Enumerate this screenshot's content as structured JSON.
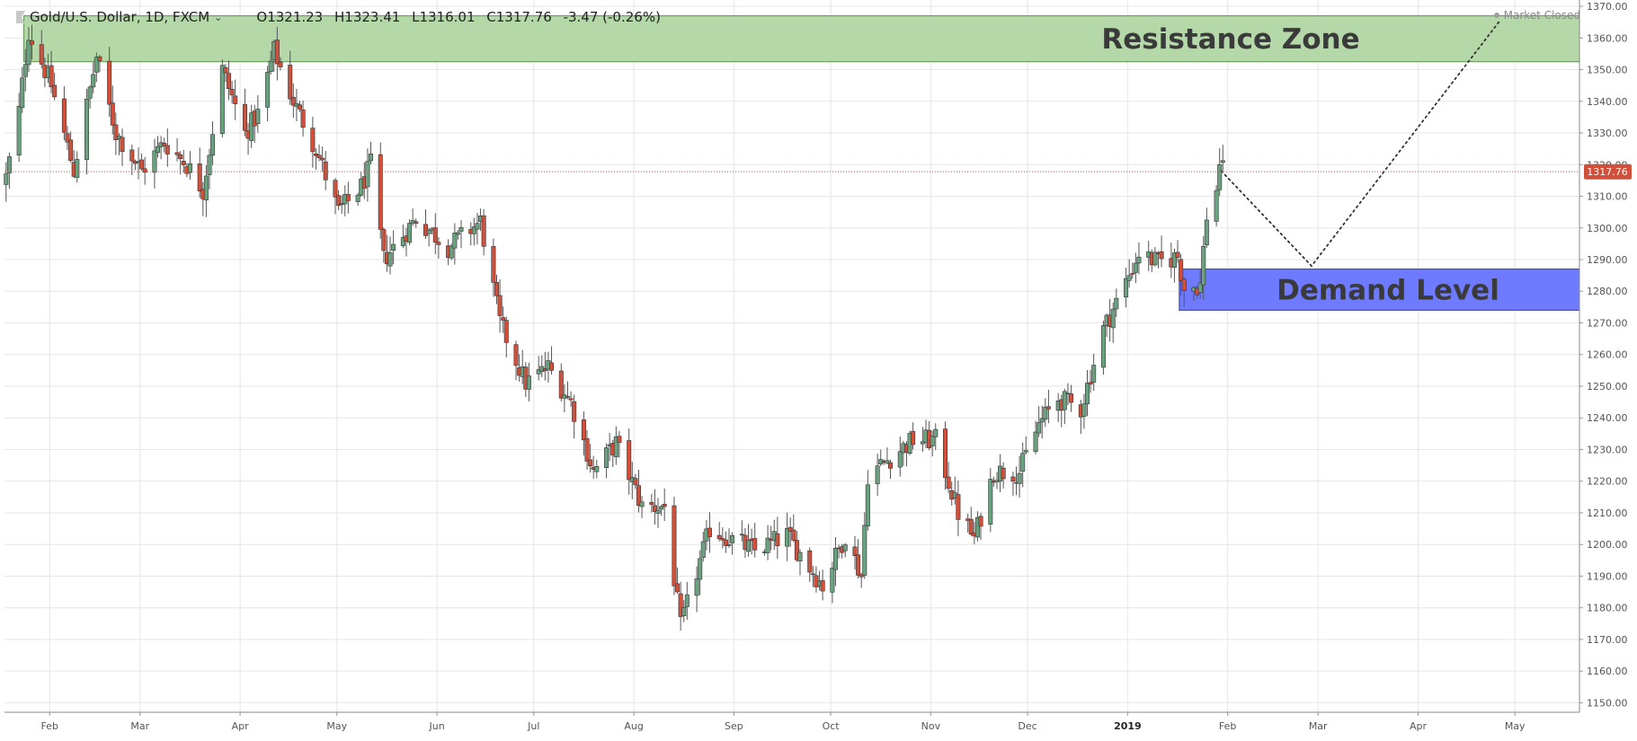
{
  "header": {
    "symbol": "Gold/U.S. Dollar, 1D, FXCM",
    "open": "O1321.23",
    "high": "H1323.41",
    "low": "L1316.01",
    "close": "C1317.76",
    "change": "-3.47 (-0.26%)"
  },
  "market_status": "Market Closed",
  "last_price_label": "1317.76",
  "annotations": {
    "resistance_label": "Resistance Zone",
    "demand_label": "Demand Level"
  },
  "colors": {
    "up_candle": "#6aa27f",
    "down_candle": "#d0503c",
    "resistance_fill": "#b5d8a8",
    "demand_fill": "#6f7bff",
    "last_price": "#d0503c"
  },
  "chart_data": {
    "type": "candlestick",
    "y_axis": {
      "ylim": [
        1147,
        1372
      ],
      "ticks": [
        "1150.00",
        "1160.00",
        "1170.00",
        "1180.00",
        "1190.00",
        "1200.00",
        "1210.00",
        "1220.00",
        "1230.00",
        "1240.00",
        "1250.00",
        "1260.00",
        "1270.00",
        "1280.00",
        "1290.00",
        "1300.00",
        "1310.00",
        "1320.00",
        "1330.00",
        "1340.00",
        "1350.00",
        "1360.00",
        "1370.00"
      ]
    },
    "x_axis": {
      "xlim": [
        "2018-01-18",
        "2019-05-21"
      ],
      "ticks": [
        {
          "date": "2018-02-01",
          "label": "Feb",
          "bold": false
        },
        {
          "date": "2018-03-01",
          "label": "Mar",
          "bold": false
        },
        {
          "date": "2018-04-01",
          "label": "Apr",
          "bold": false
        },
        {
          "date": "2018-05-01",
          "label": "May",
          "bold": false
        },
        {
          "date": "2018-06-01",
          "label": "Jun",
          "bold": false
        },
        {
          "date": "2018-07-01",
          "label": "Jul",
          "bold": false
        },
        {
          "date": "2018-08-01",
          "label": "Aug",
          "bold": false
        },
        {
          "date": "2018-09-01",
          "label": "Sep",
          "bold": false
        },
        {
          "date": "2018-10-01",
          "label": "Oct",
          "bold": false
        },
        {
          "date": "2018-11-01",
          "label": "Nov",
          "bold": false
        },
        {
          "date": "2018-12-01",
          "label": "Dec",
          "bold": false
        },
        {
          "date": "2019-01-01",
          "label": "2019",
          "bold": true
        },
        {
          "date": "2019-02-01",
          "label": "Feb",
          "bold": false
        },
        {
          "date": "2019-03-01",
          "label": "Mar",
          "bold": false
        },
        {
          "date": "2019-04-01",
          "label": "Apr",
          "bold": false
        },
        {
          "date": "2019-05-01",
          "label": "May",
          "bold": false
        }
      ]
    },
    "grid": true,
    "last_price": 1317.76,
    "zones": [
      {
        "name": "Resistance Zone",
        "from": "2018-01-24",
        "to": "2019-05-21",
        "low": 1352.5,
        "high": 1367
      },
      {
        "name": "Demand Level",
        "from": "2019-01-17",
        "to": "2019-05-21",
        "low": 1274,
        "high": 1287
      }
    ],
    "projection": [
      {
        "date": "2019-01-30",
        "price": 1318
      },
      {
        "date": "2019-02-27",
        "price": 1288
      },
      {
        "date": "2019-04-26",
        "price": 1365
      }
    ],
    "keypoints": [
      [
        "2018-01-18",
        1316
      ],
      [
        "2018-01-22",
        1337
      ],
      [
        "2018-01-25",
        1362
      ],
      [
        "2018-02-01",
        1345
      ],
      [
        "2018-02-08",
        1318
      ],
      [
        "2018-02-15",
        1354
      ],
      [
        "2018-02-21",
        1330
      ],
      [
        "2018-03-01",
        1318
      ],
      [
        "2018-03-08",
        1327
      ],
      [
        "2018-03-15",
        1320
      ],
      [
        "2018-03-20",
        1312
      ],
      [
        "2018-03-26",
        1350
      ],
      [
        "2018-04-02",
        1330
      ],
      [
        "2018-04-06",
        1336
      ],
      [
        "2018-04-11",
        1356
      ],
      [
        "2018-04-17",
        1340
      ],
      [
        "2018-04-24",
        1325
      ],
      [
        "2018-05-01",
        1305
      ],
      [
        "2018-05-08",
        1313
      ],
      [
        "2018-05-11",
        1320
      ],
      [
        "2018-05-15",
        1290
      ],
      [
        "2018-05-25",
        1303
      ],
      [
        "2018-06-04",
        1294
      ],
      [
        "2018-06-14",
        1302
      ],
      [
        "2018-06-20",
        1270
      ],
      [
        "2018-06-28",
        1251
      ],
      [
        "2018-07-05",
        1256
      ],
      [
        "2018-07-12",
        1245
      ],
      [
        "2018-07-19",
        1223
      ],
      [
        "2018-07-26",
        1232
      ],
      [
        "2018-08-03",
        1212
      ],
      [
        "2018-08-10",
        1212
      ],
      [
        "2018-08-15",
        1174
      ],
      [
        "2018-08-24",
        1205
      ],
      [
        "2018-09-07",
        1198
      ],
      [
        "2018-09-17",
        1203
      ],
      [
        "2018-09-28",
        1187
      ],
      [
        "2018-10-05",
        1203
      ],
      [
        "2018-10-10",
        1190
      ],
      [
        "2018-10-12",
        1222
      ],
      [
        "2018-10-26",
        1233
      ],
      [
        "2018-11-02",
        1233
      ],
      [
        "2018-11-09",
        1210
      ],
      [
        "2018-11-14",
        1202
      ],
      [
        "2018-11-20",
        1223
      ],
      [
        "2018-11-28",
        1223
      ],
      [
        "2018-12-04",
        1238
      ],
      [
        "2018-12-10",
        1246
      ],
      [
        "2018-12-17",
        1243
      ],
      [
        "2018-12-24",
        1268
      ],
      [
        "2018-12-31",
        1283
      ],
      [
        "2019-01-04",
        1292
      ],
      [
        "2019-01-10",
        1289
      ],
      [
        "2019-01-16",
        1291
      ],
      [
        "2019-01-18",
        1281
      ],
      [
        "2019-01-23",
        1282
      ],
      [
        "2019-01-25",
        1304
      ],
      [
        "2019-01-28",
        1312
      ],
      [
        "2019-01-29",
        1321
      ],
      [
        "2019-01-30",
        1318
      ]
    ]
  }
}
